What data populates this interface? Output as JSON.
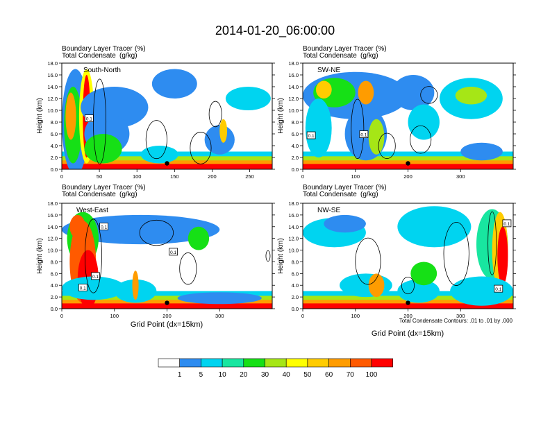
{
  "title": "2014-01-20_06:00:00",
  "header_variables": {
    "line1_label": "Boundary Layer Tracer",
    "line1_units": "(%)",
    "line2_label": "Total Condensate",
    "line2_units": "(g/kg)"
  },
  "ylabel": "Height (km)",
  "xlabel": "Grid Point (dx=15km)",
  "contour_note": "Total Condensate Contours: .01 to .01 by .000",
  "colorbar": {
    "labels": [
      "1",
      "5",
      "10",
      "20",
      "30",
      "40",
      "50",
      "60",
      "70",
      "100"
    ],
    "colors": [
      "#ffffff",
      "#2e8cf0",
      "#00d4f0",
      "#18e6a0",
      "#16e016",
      "#a6e616",
      "#ffff00",
      "#ffcc00",
      "#ff9c00",
      "#ff5a00",
      "#ff0000"
    ]
  },
  "chart_data": [
    {
      "type": "heatmap",
      "title": "South-North",
      "ylim": [
        0,
        18
      ],
      "yticks": [
        "0.0",
        "2.0",
        "4.0",
        "6.0",
        "8.0",
        "10.0",
        "12.0",
        "14.0",
        "16.0",
        "18.0"
      ],
      "xlim": [
        0,
        280
      ],
      "xticks": [
        "0",
        "50",
        "100",
        "150",
        "200",
        "250"
      ],
      "contour_box_labels": [
        "0.1"
      ],
      "marker": {
        "x": 140,
        "y": 1.0
      },
      "blobs": [
        {
          "x": 18,
          "y": 8.0,
          "rx": 18,
          "ry": 9.0,
          "level": 1
        },
        {
          "x": 15,
          "y": 7.5,
          "rx": 12,
          "ry": 6.5,
          "level": 4
        },
        {
          "x": 12,
          "y": 9.0,
          "rx": 7,
          "ry": 4.0,
          "level": 8
        },
        {
          "x": 33,
          "y": 9.0,
          "rx": 10,
          "ry": 8.0,
          "level": 6
        },
        {
          "x": 33,
          "y": 9.0,
          "rx": 5,
          "ry": 7.0,
          "level": 10
        },
        {
          "x": 70,
          "y": 10.5,
          "rx": 45,
          "ry": 3.5,
          "level": 1
        },
        {
          "x": 60,
          "y": 6.0,
          "rx": 30,
          "ry": 3.5,
          "level": 1
        },
        {
          "x": 55,
          "y": 3.5,
          "rx": 25,
          "ry": 2.5,
          "level": 4
        },
        {
          "x": 150,
          "y": 14.5,
          "rx": 30,
          "ry": 2.5,
          "level": 1
        },
        {
          "x": 248,
          "y": 12.0,
          "rx": 30,
          "ry": 2.0,
          "level": 2
        },
        {
          "x": 210,
          "y": 5.0,
          "rx": 20,
          "ry": 2.5,
          "level": 1
        },
        {
          "x": 215,
          "y": 6.5,
          "rx": 5,
          "ry": 2.0,
          "level": 7
        },
        {
          "x": 130,
          "y": 2.5,
          "rx": 25,
          "ry": 1.5,
          "level": 2
        }
      ]
    },
    {
      "type": "heatmap",
      "title": "SW-NE",
      "ylim": [
        0,
        18
      ],
      "yticks": [
        "0.0",
        "2.0",
        "4.0",
        "6.0",
        "8.0",
        "10.0",
        "12.0",
        "14.0",
        "16.0",
        "18.0"
      ],
      "xlim": [
        0,
        400
      ],
      "xticks": [
        "0",
        "100",
        "200",
        "300"
      ],
      "contour_box_labels": [
        "0.1",
        "0.1"
      ],
      "marker": {
        "x": 200,
        "y": 1.0
      },
      "blobs": [
        {
          "x": 100,
          "y": 12.5,
          "rx": 100,
          "ry": 4.0,
          "level": 1
        },
        {
          "x": 60,
          "y": 13.0,
          "rx": 40,
          "ry": 2.5,
          "level": 4
        },
        {
          "x": 40,
          "y": 13.5,
          "rx": 15,
          "ry": 1.5,
          "level": 7
        },
        {
          "x": 120,
          "y": 13.0,
          "rx": 15,
          "ry": 2.0,
          "level": 8
        },
        {
          "x": 210,
          "y": 13.0,
          "rx": 40,
          "ry": 3.0,
          "level": 1
        },
        {
          "x": 320,
          "y": 12.0,
          "rx": 60,
          "ry": 3.5,
          "level": 2
        },
        {
          "x": 320,
          "y": 12.5,
          "rx": 30,
          "ry": 1.5,
          "level": 5
        },
        {
          "x": 30,
          "y": 7.0,
          "rx": 25,
          "ry": 5.0,
          "level": 2
        },
        {
          "x": 120,
          "y": 6.0,
          "rx": 40,
          "ry": 4.5,
          "level": 1
        },
        {
          "x": 140,
          "y": 5.5,
          "rx": 15,
          "ry": 3.0,
          "level": 5
        },
        {
          "x": 230,
          "y": 8.0,
          "rx": 30,
          "ry": 3.0,
          "level": 2
        },
        {
          "x": 340,
          "y": 3.0,
          "rx": 40,
          "ry": 1.5,
          "level": 1
        }
      ]
    },
    {
      "type": "heatmap",
      "title": "West-East",
      "ylim": [
        0,
        18
      ],
      "yticks": [
        "0.0",
        "2.0",
        "4.0",
        "6.0",
        "8.0",
        "10.0",
        "12.0",
        "14.0",
        "16.0",
        "18.0"
      ],
      "xlim": [
        0,
        400
      ],
      "xticks": [
        "0",
        "100",
        "200",
        "300"
      ],
      "contour_box_labels": [
        "0.1",
        "0.1",
        "0.1",
        "0.1"
      ],
      "marker": {
        "x": 200,
        "y": 1.0
      },
      "blobs": [
        {
          "x": 150,
          "y": 13.5,
          "rx": 150,
          "ry": 2.5,
          "level": 1
        },
        {
          "x": 260,
          "y": 12.0,
          "rx": 20,
          "ry": 2.0,
          "level": 4
        },
        {
          "x": 40,
          "y": 12.0,
          "rx": 30,
          "ry": 4.5,
          "level": 4
        },
        {
          "x": 40,
          "y": 8.0,
          "rx": 25,
          "ry": 7.0,
          "level": 9
        },
        {
          "x": 50,
          "y": 5.0,
          "rx": 20,
          "ry": 5.0,
          "level": 10
        },
        {
          "x": 30,
          "y": 14.0,
          "rx": 15,
          "ry": 2.0,
          "level": 9
        },
        {
          "x": 60,
          "y": 3.5,
          "rx": 60,
          "ry": 2.0,
          "level": 2
        },
        {
          "x": 140,
          "y": 3.0,
          "rx": 40,
          "ry": 2.0,
          "level": 2
        },
        {
          "x": 140,
          "y": 4.0,
          "rx": 6,
          "ry": 2.5,
          "level": 8
        },
        {
          "x": 300,
          "y": 1.8,
          "rx": 80,
          "ry": 1.0,
          "level": 1
        }
      ]
    },
    {
      "type": "heatmap",
      "title": "NW-SE",
      "ylim": [
        0,
        18
      ],
      "yticks": [
        "0.0",
        "2.0",
        "4.0",
        "6.0",
        "8.0",
        "10.0",
        "12.0",
        "14.0",
        "16.0",
        "18.0"
      ],
      "xlim": [
        0,
        400
      ],
      "xticks": [
        "0",
        "100",
        "200",
        "300"
      ],
      "contour_box_labels": [
        "0.1",
        "0.1"
      ],
      "marker": {
        "x": 200,
        "y": 1.0
      },
      "blobs": [
        {
          "x": 60,
          "y": 13.0,
          "rx": 60,
          "ry": 2.5,
          "level": 2
        },
        {
          "x": 80,
          "y": 14.5,
          "rx": 40,
          "ry": 1.5,
          "level": 1
        },
        {
          "x": 250,
          "y": 14.0,
          "rx": 70,
          "ry": 3.5,
          "level": 2
        },
        {
          "x": 360,
          "y": 11.0,
          "rx": 30,
          "ry": 6.0,
          "level": 3
        },
        {
          "x": 375,
          "y": 10.0,
          "rx": 15,
          "ry": 6.5,
          "level": 7
        },
        {
          "x": 380,
          "y": 9.0,
          "rx": 10,
          "ry": 5.0,
          "level": 10
        },
        {
          "x": 120,
          "y": 4.0,
          "rx": 50,
          "ry": 2.0,
          "level": 2
        },
        {
          "x": 140,
          "y": 4.0,
          "rx": 15,
          "ry": 2.0,
          "level": 8
        },
        {
          "x": 220,
          "y": 3.0,
          "rx": 40,
          "ry": 2.0,
          "level": 2
        },
        {
          "x": 340,
          "y": 3.0,
          "rx": 60,
          "ry": 2.5,
          "level": 2
        },
        {
          "x": 230,
          "y": 6.0,
          "rx": 25,
          "ry": 2.0,
          "level": 4
        }
      ]
    }
  ]
}
